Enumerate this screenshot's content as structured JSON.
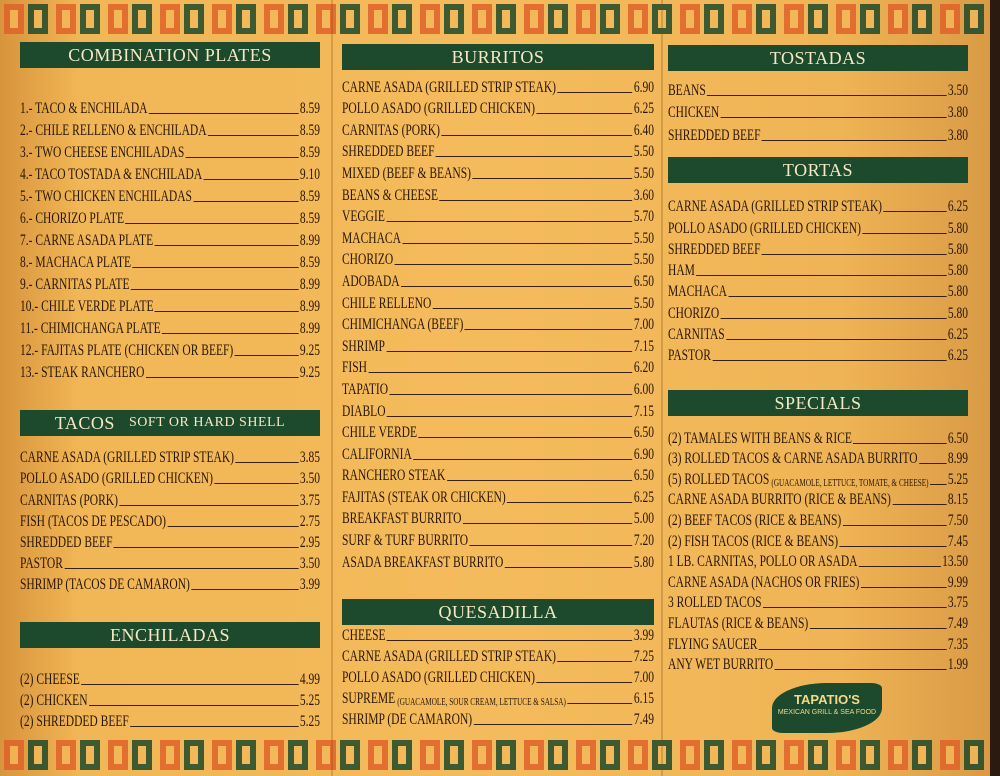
{
  "columns": [
    {
      "sections": [
        {
          "title": "COMBINATION PLATES",
          "items": [
            {
              "name": "1.- TACO & ENCHILADA",
              "price": "8.59"
            },
            {
              "name": "2.- CHILE RELLENO & ENCHILADA",
              "price": "8.59"
            },
            {
              "name": "3.- TWO CHEESE ENCHILADAS",
              "price": "8.59"
            },
            {
              "name": "4.- TACO TOSTADA & ENCHILADA",
              "price": "9.10"
            },
            {
              "name": "5.- TWO CHICKEN ENCHILADAS",
              "price": "8.59"
            },
            {
              "name": "6.- CHORIZO PLATE",
              "price": "8.59"
            },
            {
              "name": "7.- CARNE ASADA PLATE",
              "price": "8.99"
            },
            {
              "name": "8.- MACHACA PLATE",
              "price": "8.59"
            },
            {
              "name": "9.- CARNITAS PLATE",
              "price": "8.99"
            },
            {
              "name": "10.- CHILE VERDE PLATE",
              "price": "8.99"
            },
            {
              "name": "11.- CHIMICHANGA PLATE",
              "price": "8.99"
            },
            {
              "name": "12.- FAJITAS PLATE (CHICKEN OR BEEF)",
              "price": "9.25"
            },
            {
              "name": "13.- STEAK RANCHERO",
              "price": "9.25"
            }
          ]
        },
        {
          "title": "TACOS",
          "subtitle": "SOFT OR HARD SHELL",
          "items": [
            {
              "name": "CARNE ASADA (GRILLED STRIP STEAK)",
              "price": "3.85"
            },
            {
              "name": "POLLO ASADO (GRILLED CHICKEN)",
              "price": "3.50"
            },
            {
              "name": "CARNITAS (PORK)",
              "price": "3.75"
            },
            {
              "name": "FISH (TACOS DE PESCADO)",
              "price": "2.75"
            },
            {
              "name": "SHREDDED BEEF",
              "price": "2.95"
            },
            {
              "name": "PASTOR",
              "price": "3.50"
            },
            {
              "name": "SHRIMP (TACOS DE CAMARON)",
              "price": "3.99"
            }
          ]
        },
        {
          "title": "ENCHILADAS",
          "items": [
            {
              "name": "(2) CHEESE",
              "price": "4.99"
            },
            {
              "name": "(2) CHICKEN",
              "price": "5.25"
            },
            {
              "name": "(2) SHREDDED BEEF",
              "price": "5.25"
            }
          ]
        }
      ]
    },
    {
      "sections": [
        {
          "title": "BURRITOS",
          "items": [
            {
              "name": "CARNE ASADA (GRILLED STRIP STEAK)",
              "price": "6.90"
            },
            {
              "name": "POLLO ASADO (GRILLED CHICKEN)",
              "price": "6.25"
            },
            {
              "name": "CARNITAS (PORK)",
              "price": "6.40"
            },
            {
              "name": "SHREDDED BEEF",
              "price": "5.50"
            },
            {
              "name": "MIXED (BEEF & BEANS)",
              "price": "5.50"
            },
            {
              "name": "BEANS & CHEESE",
              "price": "3.60"
            },
            {
              "name": "VEGGIE",
              "price": "5.70"
            },
            {
              "name": "MACHACA",
              "price": "5.50"
            },
            {
              "name": "CHORIZO",
              "price": "5.50"
            },
            {
              "name": "ADOBADA",
              "price": "6.50"
            },
            {
              "name": "CHILE RELLENO",
              "price": "5.50"
            },
            {
              "name": "CHIMICHANGA (BEEF)",
              "price": "7.00"
            },
            {
              "name": "SHRIMP",
              "price": "7.15"
            },
            {
              "name": "FISH",
              "price": "6.20"
            },
            {
              "name": "TAPATIO",
              "price": "6.00"
            },
            {
              "name": "DIABLO",
              "price": "7.15"
            },
            {
              "name": "CHILE VERDE",
              "price": "6.50"
            },
            {
              "name": "CALIFORNIA",
              "price": "6.90"
            },
            {
              "name": "RANCHERO STEAK",
              "price": "6.50"
            },
            {
              "name": "FAJITAS (STEAK OR CHICKEN)",
              "price": "6.25"
            },
            {
              "name": "BREAKFAST BURRITO",
              "price": "5.00"
            },
            {
              "name": "SURF & TURF BURRITO",
              "price": "7.20"
            },
            {
              "name": "ASADA BREAKFAST BURRITO",
              "price": "5.80"
            }
          ]
        },
        {
          "title": "QUESADILLA",
          "items": [
            {
              "name": "CHEESE",
              "price": "3.99"
            },
            {
              "name": "CARNE ASADA (GRILLED STRIP STEAK)",
              "price": "7.25"
            },
            {
              "name": "POLLO ASADO (GRILLED CHICKEN)",
              "price": "7.00"
            },
            {
              "name": "SUPREME",
              "note": "(GUACAMOLE, SOUR CREAM, LETTUCE & SALSA)",
              "price": "6.15"
            },
            {
              "name": "SHRIMP (DE CAMARON)",
              "price": "7.49"
            }
          ]
        }
      ]
    },
    {
      "sections": [
        {
          "title": "TOSTADAS",
          "items": [
            {
              "name": "BEANS",
              "price": "3.50"
            },
            {
              "name": "CHICKEN",
              "price": "3.80"
            },
            {
              "name": "SHREDDED BEEF",
              "price": "3.80"
            }
          ]
        },
        {
          "title": "TORTAS",
          "items": [
            {
              "name": "CARNE ASADA (GRILLED STRIP STEAK)",
              "price": "6.25"
            },
            {
              "name": "POLLO ASADO (GRILLED CHICKEN)",
              "price": "5.80"
            },
            {
              "name": "SHREDDED BEEF",
              "price": "5.80"
            },
            {
              "name": "HAM",
              "price": "5.80"
            },
            {
              "name": "MACHACA",
              "price": "5.80"
            },
            {
              "name": "CHORIZO",
              "price": "5.80"
            },
            {
              "name": "CARNITAS",
              "price": "6.25"
            },
            {
              "name": "PASTOR",
              "price": "6.25"
            }
          ]
        },
        {
          "title": "SPECIALS",
          "items": [
            {
              "name": "(2) TAMALES WITH BEANS & RICE",
              "price": "6.50"
            },
            {
              "name": "(3) ROLLED TACOS & CARNE ASADA BURRITO",
              "price": "8.99"
            },
            {
              "name": "(5) ROLLED TACOS",
              "note": "(GUACAMOLE, LETTUCE, TOMATE, & CHEESE)",
              "price": "5.25"
            },
            {
              "name": "CARNE ASADA BURRITO (RICE & BEANS)",
              "price": "8.15"
            },
            {
              "name": "(2) BEEF TACOS (RICE & BEANS)",
              "price": "7.50"
            },
            {
              "name": "(2) FISH TACOS (RICE & BEANS)",
              "price": "7.45"
            },
            {
              "name": "1 LB. CARNITAS, POLLO OR ASADA",
              "price": "13.50"
            },
            {
              "name": "CARNE ASADA (NACHOS OR FRIES)",
              "price": "9.99"
            },
            {
              "name": "3 ROLLED TACOS",
              "price": "3.75"
            },
            {
              "name": "FLAUTAS (RICE & BEANS)",
              "price": "7.49"
            },
            {
              "name": "FLYING SAUCER",
              "price": "7.35"
            },
            {
              "name": "ANY WET BURRITO",
              "price": "1.99"
            }
          ]
        }
      ]
    }
  ],
  "logo": {
    "name": "TAPATIO'S",
    "tagline": "MEXICAN GRILL & SEA FOOD"
  }
}
